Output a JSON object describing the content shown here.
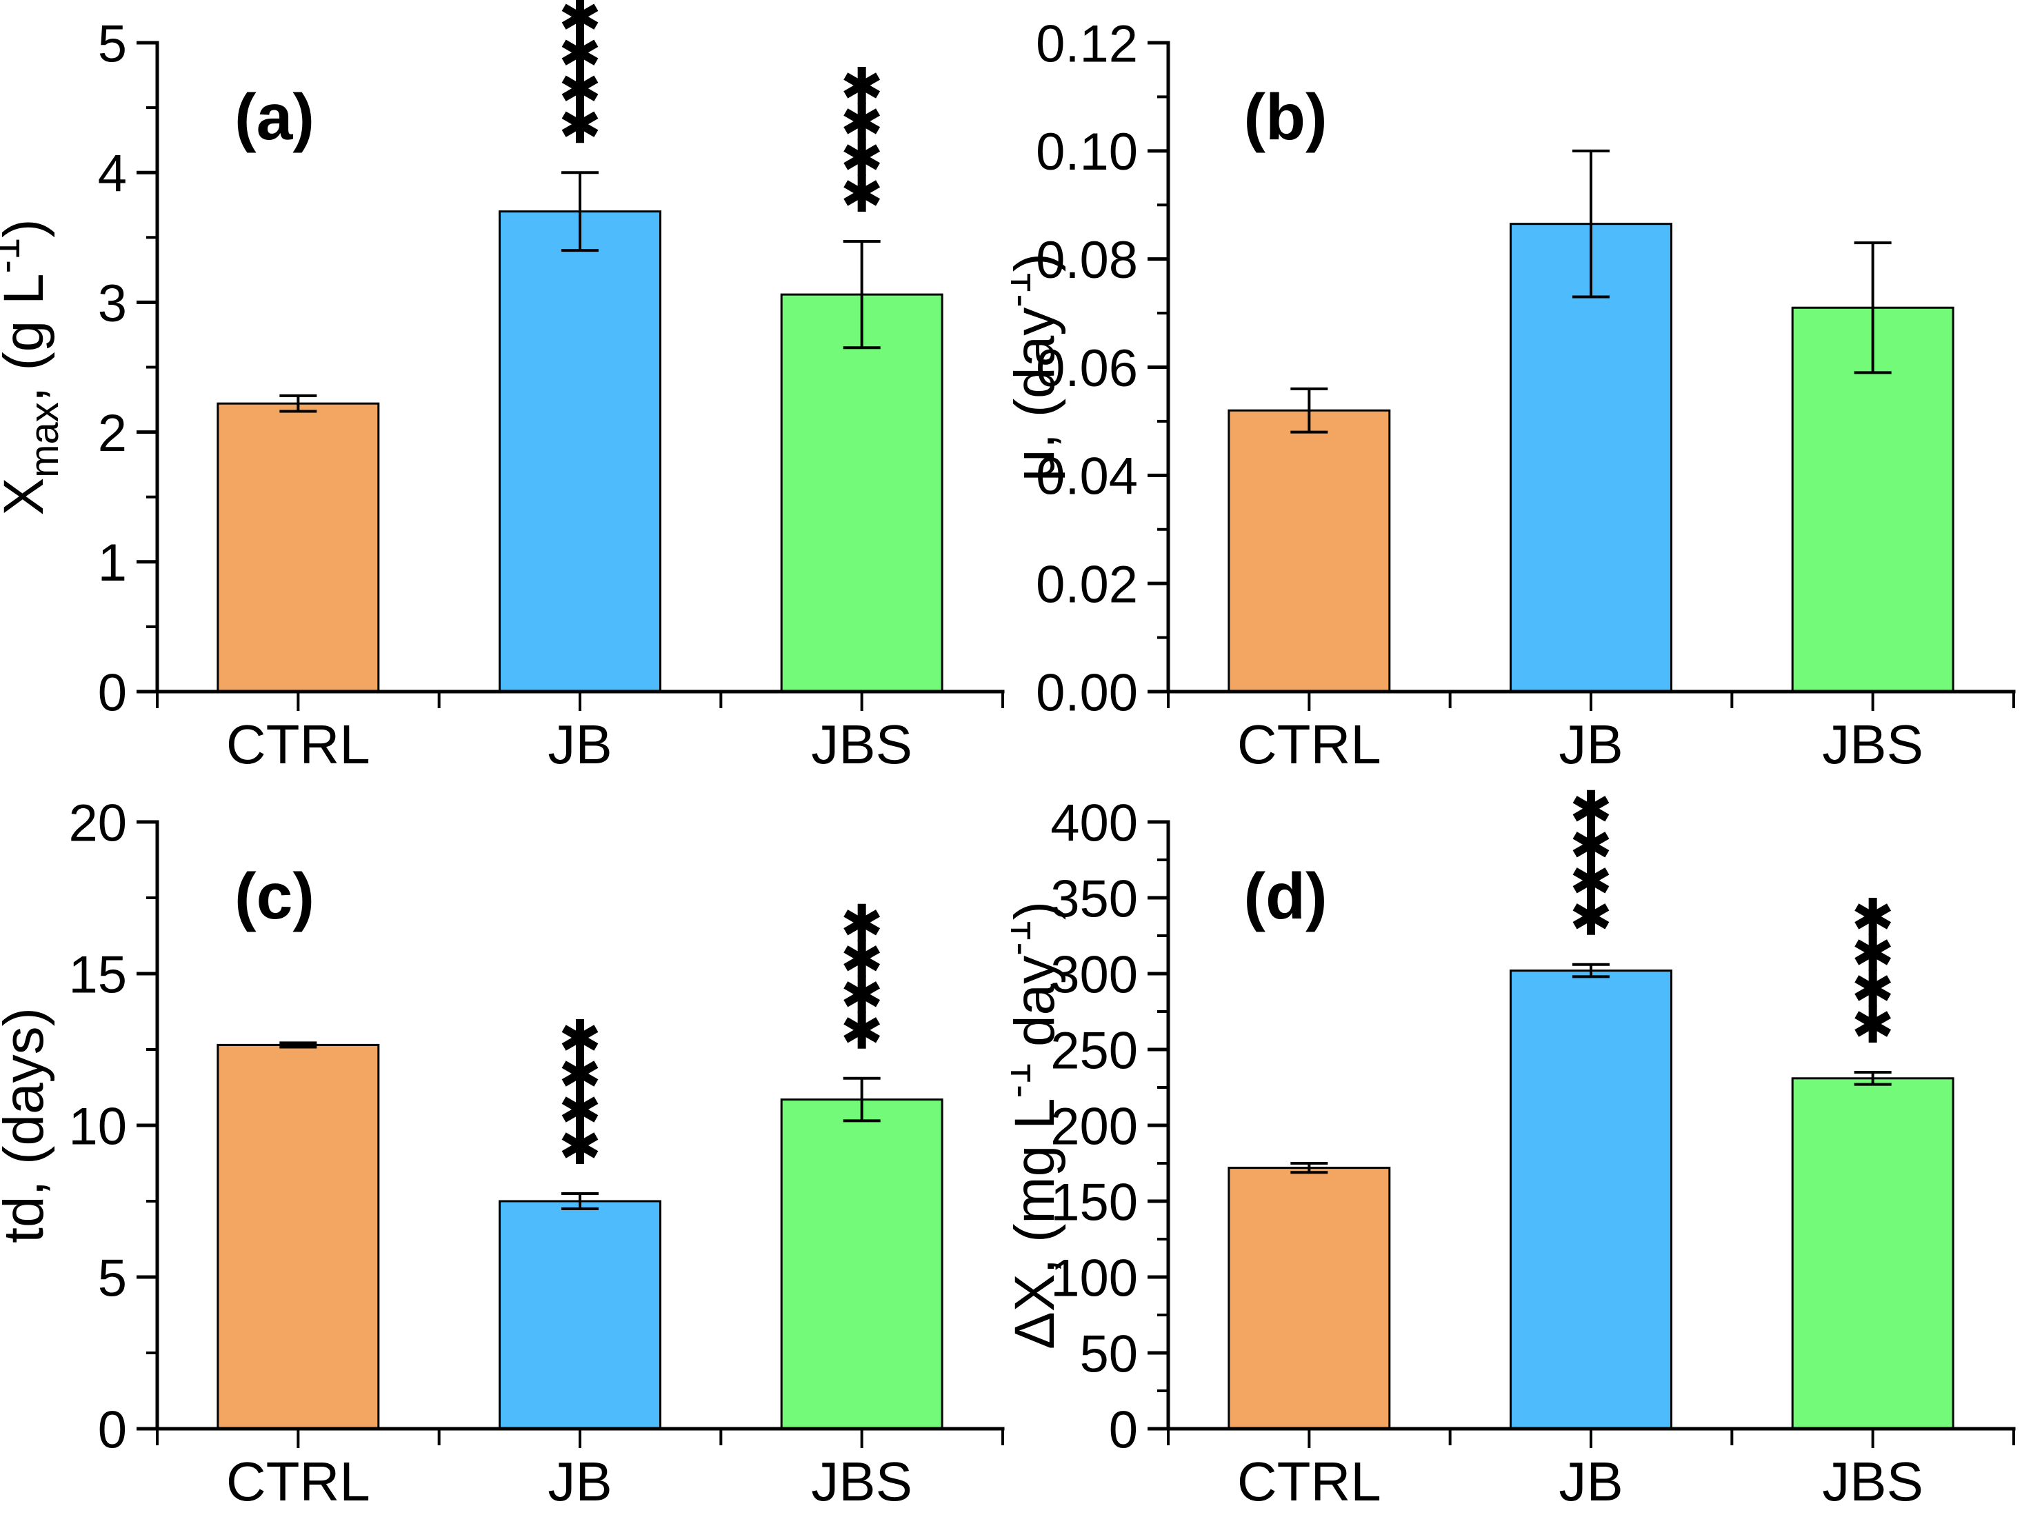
{
  "figure": {
    "background": "#ffffff",
    "bar_fill_colors": [
      "#F2A661",
      "#4DBBFC",
      "#73FA78"
    ],
    "bar_border_color": "#000000",
    "axis_color": "#000000",
    "significance_marker": "asterisk-star",
    "categories": [
      "CTRL",
      "JB",
      "JBS"
    ]
  },
  "chart_data": [
    {
      "type": "bar",
      "panel_label": "(a)",
      "categories": [
        "CTRL",
        "JB",
        "JBS"
      ],
      "values": [
        2.22,
        3.7,
        3.06
      ],
      "errors": [
        0.06,
        0.3,
        0.41
      ],
      "significance": [
        "",
        "****",
        "****"
      ],
      "ylabel_plain": "Xmax, (g L-1)",
      "ylabel_parts": [
        {
          "text": "X"
        },
        {
          "text": "max",
          "style": "sub"
        },
        {
          "text": ", (g L"
        },
        {
          "text": "-1",
          "style": "sup"
        },
        {
          "text": ")"
        }
      ],
      "ylim": [
        0,
        5
      ],
      "ytick_step": 1,
      "yminor_step": 0.5,
      "ytick_decimals": 0,
      "ytick_labels": [
        "0",
        "1",
        "2",
        "3",
        "4",
        "5"
      ],
      "grid": false,
      "legend": null
    },
    {
      "type": "bar",
      "panel_label": "(b)",
      "categories": [
        "CTRL",
        "JB",
        "JBS"
      ],
      "values": [
        0.052,
        0.0865,
        0.071
      ],
      "errors": [
        0.004,
        0.0135,
        0.012
      ],
      "significance": [
        "",
        "",
        ""
      ],
      "ylabel_plain": "μ, (day-1)",
      "ylabel_parts": [
        {
          "text": "μ, (day"
        },
        {
          "text": "-1",
          "style": "sup"
        },
        {
          "text": ")"
        }
      ],
      "ylim": [
        0,
        0.12
      ],
      "ytick_step": 0.02,
      "yminor_step": 0.01,
      "ytick_decimals": 2,
      "ytick_labels": [
        "0.00",
        "0.02",
        "0.04",
        "0.06",
        "0.08",
        "0.10",
        "0.12"
      ],
      "grid": false,
      "legend": null
    },
    {
      "type": "bar",
      "panel_label": "(c)",
      "categories": [
        "CTRL",
        "JB",
        "JBS"
      ],
      "values": [
        12.65,
        7.5,
        10.85
      ],
      "errors": [
        0.07,
        0.25,
        0.7
      ],
      "significance": [
        "",
        "****",
        "****"
      ],
      "ylabel_plain": "td, (days)",
      "ylabel_parts": [
        {
          "text": "td, (days)"
        }
      ],
      "ylim": [
        0,
        20
      ],
      "ytick_step": 5,
      "yminor_step": 2.5,
      "ytick_decimals": 0,
      "ytick_labels": [
        "0",
        "5",
        "10",
        "15",
        "20"
      ],
      "grid": false,
      "legend": null
    },
    {
      "type": "bar",
      "panel_label": "(d)",
      "categories": [
        "CTRL",
        "JB",
        "JBS"
      ],
      "values": [
        172,
        302,
        231
      ],
      "errors": [
        3,
        4,
        4
      ],
      "significance": [
        "",
        "****",
        "****"
      ],
      "ylabel_plain": "ΔX, (mg L-1 day-1)",
      "ylabel_parts": [
        {
          "text": "ΔX, (mg L"
        },
        {
          "text": "-1",
          "style": "sup"
        },
        {
          "text": " day"
        },
        {
          "text": "-1",
          "style": "sup"
        },
        {
          "text": ")"
        }
      ],
      "ylim": [
        0,
        400
      ],
      "ytick_step": 50,
      "yminor_step": 25,
      "ytick_decimals": 0,
      "ytick_labels": [
        "0",
        "50",
        "100",
        "150",
        "200",
        "250",
        "300",
        "350",
        "400"
      ],
      "grid": false,
      "legend": null
    }
  ]
}
